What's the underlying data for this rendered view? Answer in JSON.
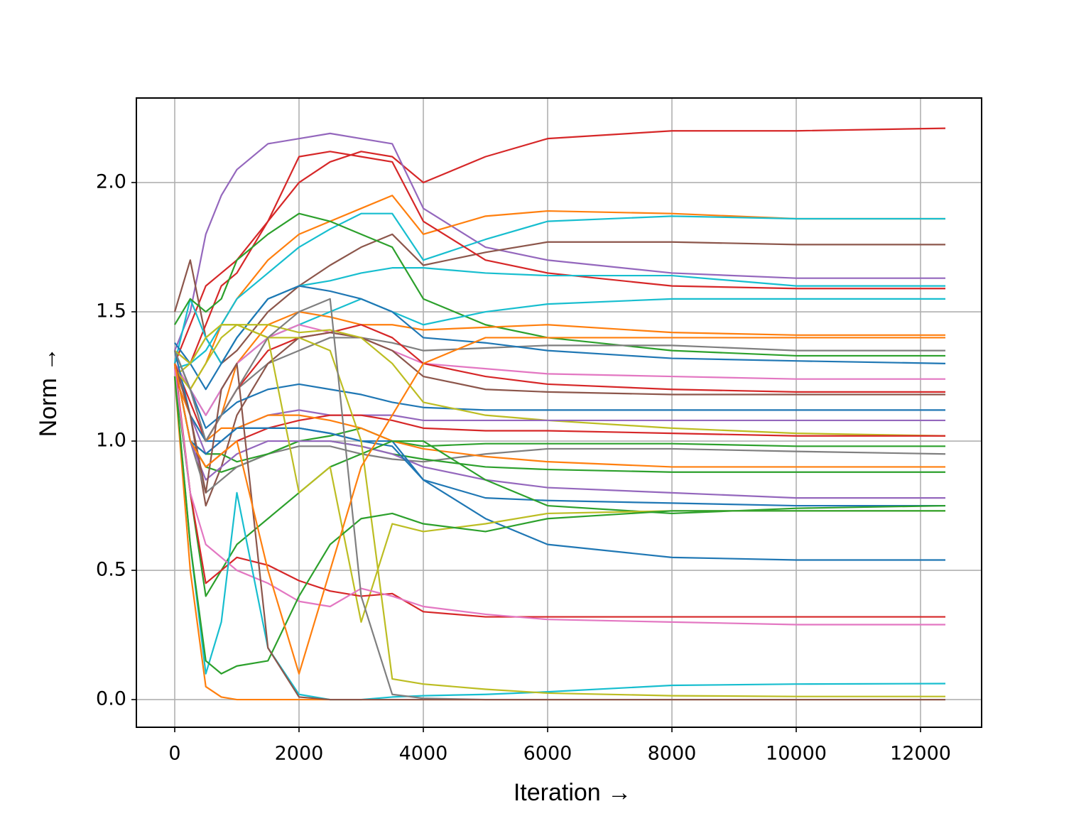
{
  "chart_data": {
    "type": "line",
    "x_label": "Iteration →",
    "y_label": "Norm →",
    "xlim": [
      -617,
      12983
    ],
    "ylim": [
      -0.107,
      2.327
    ],
    "xticks": [
      0,
      2000,
      4000,
      6000,
      8000,
      10000,
      12000
    ],
    "yticks": [
      {
        "value": 0,
        "label": "0.0"
      },
      0.5,
      {
        "value": 1,
        "label": "1.0"
      },
      1.5,
      {
        "value": 2,
        "label": "2.0"
      }
    ],
    "grid": true,
    "x": [
      0,
      250,
      500,
      750,
      1000,
      1500,
      2000,
      2500,
      3000,
      3500,
      4000,
      5000,
      6000,
      8000,
      10000,
      12400
    ],
    "series": [
      {
        "color": "#d62728",
        "values": [
          1.3,
          1.45,
          1.6,
          1.65,
          1.7,
          1.85,
          2.0,
          2.08,
          2.12,
          2.1,
          2.0,
          2.1,
          2.17,
          2.2,
          2.2,
          2.21
        ]
      },
      {
        "color": "#9467bd",
        "values": [
          1.35,
          1.5,
          1.8,
          1.95,
          2.05,
          2.15,
          2.17,
          2.19,
          2.17,
          2.15,
          1.9,
          1.75,
          1.7,
          1.65,
          1.63,
          1.63
        ]
      },
      {
        "color": "#ff7f0e",
        "values": [
          1.3,
          1.2,
          1.3,
          1.45,
          1.55,
          1.7,
          1.8,
          1.85,
          1.9,
          1.95,
          1.8,
          1.87,
          1.89,
          1.88,
          1.86,
          1.86
        ]
      },
      {
        "color": "#17becf",
        "values": [
          1.28,
          1.3,
          1.35,
          1.45,
          1.55,
          1.65,
          1.75,
          1.82,
          1.88,
          1.88,
          1.7,
          1.78,
          1.85,
          1.87,
          1.86,
          1.86
        ]
      },
      {
        "color": "#8c564b",
        "values": [
          1.5,
          1.7,
          1.4,
          1.3,
          1.35,
          1.5,
          1.6,
          1.68,
          1.75,
          1.8,
          1.68,
          1.73,
          1.77,
          1.77,
          1.76,
          1.76
        ]
      },
      {
        "color": "#d62728",
        "values": [
          1.35,
          1.3,
          1.45,
          1.6,
          1.65,
          1.85,
          2.1,
          2.12,
          2.1,
          2.08,
          1.85,
          1.7,
          1.65,
          1.6,
          1.59,
          1.59
        ]
      },
      {
        "color": "#17becf",
        "values": [
          1.3,
          1.55,
          1.4,
          1.3,
          1.4,
          1.55,
          1.6,
          1.62,
          1.65,
          1.67,
          1.67,
          1.65,
          1.64,
          1.64,
          1.6,
          1.6
        ]
      },
      {
        "color": "#2ca02c",
        "values": [
          1.45,
          1.55,
          1.5,
          1.55,
          1.7,
          1.8,
          1.88,
          1.85,
          1.8,
          1.75,
          1.55,
          1.45,
          1.4,
          1.35,
          1.33,
          1.33
        ]
      },
      {
        "color": "#17becf",
        "values": [
          1.3,
          1.2,
          1.1,
          1.2,
          1.3,
          1.4,
          1.45,
          1.5,
          1.55,
          1.5,
          1.45,
          1.5,
          1.53,
          1.55,
          1.55,
          1.55
        ]
      },
      {
        "color": "#ff7f0e",
        "values": [
          1.3,
          1.1,
          1.0,
          1.1,
          1.3,
          1.45,
          1.5,
          1.48,
          1.45,
          1.45,
          1.43,
          1.44,
          1.45,
          1.42,
          1.41,
          1.41
        ]
      },
      {
        "color": "#7f7f7f",
        "values": [
          1.35,
          1.2,
          1.0,
          1.1,
          1.2,
          1.3,
          1.35,
          1.4,
          1.4,
          1.38,
          1.35,
          1.36,
          1.37,
          1.37,
          1.35,
          1.35
        ]
      },
      {
        "color": "#1f77b4",
        "values": [
          1.38,
          1.3,
          1.2,
          1.3,
          1.4,
          1.55,
          1.6,
          1.58,
          1.55,
          1.5,
          1.4,
          1.38,
          1.35,
          1.32,
          1.31,
          1.3
        ]
      },
      {
        "color": "#e377c2",
        "values": [
          1.3,
          1.2,
          1.1,
          1.2,
          1.3,
          1.4,
          1.45,
          1.42,
          1.4,
          1.35,
          1.3,
          1.28,
          1.26,
          1.25,
          1.24,
          1.24
        ]
      },
      {
        "color": "#d62728",
        "values": [
          1.3,
          1.15,
          1.0,
          1.1,
          1.2,
          1.35,
          1.4,
          1.42,
          1.45,
          1.4,
          1.3,
          1.25,
          1.22,
          1.2,
          1.19,
          1.19
        ]
      },
      {
        "color": "#8c564b",
        "values": [
          1.3,
          1.1,
          0.75,
          0.9,
          1.1,
          1.3,
          1.4,
          1.42,
          1.4,
          1.35,
          1.25,
          1.2,
          1.19,
          1.18,
          1.18,
          1.18
        ]
      },
      {
        "color": "#1f77b4",
        "values": [
          1.35,
          1.2,
          1.05,
          1.1,
          1.15,
          1.2,
          1.22,
          1.2,
          1.18,
          1.15,
          1.13,
          1.12,
          1.12,
          1.12,
          1.12,
          1.12
        ]
      },
      {
        "color": "#bcbd22",
        "values": [
          1.25,
          1.3,
          1.4,
          1.45,
          1.45,
          1.45,
          1.42,
          1.43,
          1.4,
          1.3,
          1.15,
          1.1,
          1.08,
          1.05,
          1.03,
          1.02
        ]
      },
      {
        "color": "#9467bd",
        "values": [
          1.3,
          1.1,
          0.95,
          1.0,
          1.05,
          1.1,
          1.12,
          1.1,
          1.1,
          1.1,
          1.08,
          1.08,
          1.08,
          1.08,
          1.08,
          1.08
        ]
      },
      {
        "color": "#d62728",
        "values": [
          1.3,
          1.0,
          0.9,
          0.95,
          1.0,
          1.05,
          1.08,
          1.1,
          1.1,
          1.08,
          1.05,
          1.04,
          1.04,
          1.03,
          1.02,
          1.02
        ]
      },
      {
        "color": "#2ca02c",
        "values": [
          1.3,
          1.0,
          0.9,
          0.88,
          0.9,
          0.95,
          1.0,
          1.02,
          1.05,
          1.0,
          0.98,
          0.99,
          0.99,
          0.99,
          0.98,
          0.98
        ]
      },
      {
        "color": "#7f7f7f",
        "values": [
          1.3,
          1.0,
          0.8,
          0.85,
          0.9,
          0.95,
          0.98,
          0.98,
          0.95,
          0.93,
          0.92,
          0.95,
          0.97,
          0.97,
          0.96,
          0.95
        ]
      },
      {
        "color": "#ff7f0e",
        "values": [
          1.25,
          1.1,
          1.0,
          1.05,
          1.05,
          1.1,
          1.1,
          1.08,
          1.05,
          1.0,
          0.97,
          0.94,
          0.92,
          0.9,
          0.9,
          0.9
        ]
      },
      {
        "color": "#2ca02c",
        "values": [
          1.3,
          1.0,
          0.95,
          0.95,
          0.92,
          0.95,
          1.0,
          1.0,
          0.98,
          0.95,
          0.93,
          0.9,
          0.89,
          0.88,
          0.88,
          0.88
        ]
      },
      {
        "color": "#9467bd",
        "values": [
          1.3,
          1.0,
          0.85,
          0.9,
          0.95,
          1.0,
          1.0,
          1.0,
          0.98,
          0.95,
          0.9,
          0.85,
          0.82,
          0.8,
          0.78,
          0.78
        ]
      },
      {
        "color": "#1f77b4",
        "values": [
          1.35,
          1.1,
          1.0,
          1.0,
          1.05,
          1.05,
          1.05,
          1.03,
          1.0,
          0.98,
          0.85,
          0.78,
          0.77,
          0.76,
          0.75,
          0.75
        ]
      },
      {
        "color": "#1f77b4",
        "values": [
          1.3,
          1.0,
          0.95,
          1.0,
          1.05,
          1.05,
          1.05,
          1.03,
          1.0,
          1.0,
          0.85,
          0.7,
          0.6,
          0.55,
          0.54,
          0.54
        ]
      },
      {
        "color": "#2ca02c",
        "values": [
          1.25,
          0.8,
          0.4,
          0.5,
          0.6,
          0.7,
          0.8,
          0.9,
          0.95,
          1.0,
          1.0,
          0.85,
          0.75,
          0.72,
          0.74,
          0.75
        ]
      },
      {
        "color": "#bcbd22",
        "values": [
          1.28,
          1.2,
          1.3,
          1.4,
          1.45,
          1.4,
          0.8,
          0.9,
          0.3,
          0.68,
          0.65,
          0.68,
          0.72,
          0.73,
          0.73,
          0.73
        ]
      },
      {
        "color": "#d62728",
        "values": [
          1.3,
          0.8,
          0.45,
          0.5,
          0.55,
          0.52,
          0.46,
          0.42,
          0.4,
          0.41,
          0.34,
          0.32,
          0.32,
          0.32,
          0.32,
          0.32
        ]
      },
      {
        "color": "#e377c2",
        "values": [
          1.28,
          0.8,
          0.6,
          0.55,
          0.5,
          0.45,
          0.38,
          0.36,
          0.43,
          0.4,
          0.36,
          0.33,
          0.31,
          0.3,
          0.29,
          0.29
        ]
      },
      {
        "color": "#17becf",
        "values": [
          1.25,
          0.6,
          0.1,
          0.3,
          0.8,
          0.2,
          0.02,
          0.0,
          0.0,
          0.01,
          0.015,
          0.02,
          0.03,
          0.055,
          0.06,
          0.062
        ]
      },
      {
        "color": "#bcbd22",
        "values": [
          1.35,
          1.3,
          1.4,
          1.45,
          1.45,
          1.4,
          1.4,
          1.35,
          1.0,
          0.08,
          0.06,
          0.04,
          0.025,
          0.015,
          0.012,
          0.012
        ]
      },
      {
        "color": "#ff7f0e",
        "values": [
          1.25,
          0.5,
          0.05,
          0.01,
          0.0,
          0.0,
          0.0,
          0.0,
          0.0,
          0.0,
          0.0,
          0.0,
          0.0,
          0.0,
          0.0,
          0.0
        ]
      },
      {
        "color": "#2ca02c",
        "values": [
          1.25,
          0.6,
          0.15,
          0.1,
          0.13,
          0.15,
          0.4,
          0.6,
          0.7,
          0.72,
          0.68,
          0.65,
          0.7,
          0.73,
          0.73,
          0.73
        ]
      },
      {
        "color": "#7f7f7f",
        "values": [
          1.35,
          1.2,
          1.0,
          1.1,
          1.2,
          1.4,
          1.5,
          1.55,
          0.4,
          0.02,
          0.005,
          0.0,
          0.0,
          0.0,
          0.0,
          0.0
        ]
      },
      {
        "color": "#8c564b",
        "values": [
          1.3,
          1.1,
          0.8,
          1.2,
          1.3,
          0.2,
          0.01,
          0.0,
          0.0,
          0.0,
          0.0,
          0.0,
          0.0,
          0.0,
          0.0,
          0.0
        ]
      },
      {
        "color": "#ff7f0e",
        "values": [
          1.3,
          1.0,
          0.9,
          0.95,
          1.0,
          0.5,
          0.1,
          0.5,
          0.9,
          1.1,
          1.3,
          1.4,
          1.4,
          1.4,
          1.4,
          1.4
        ]
      }
    ]
  }
}
